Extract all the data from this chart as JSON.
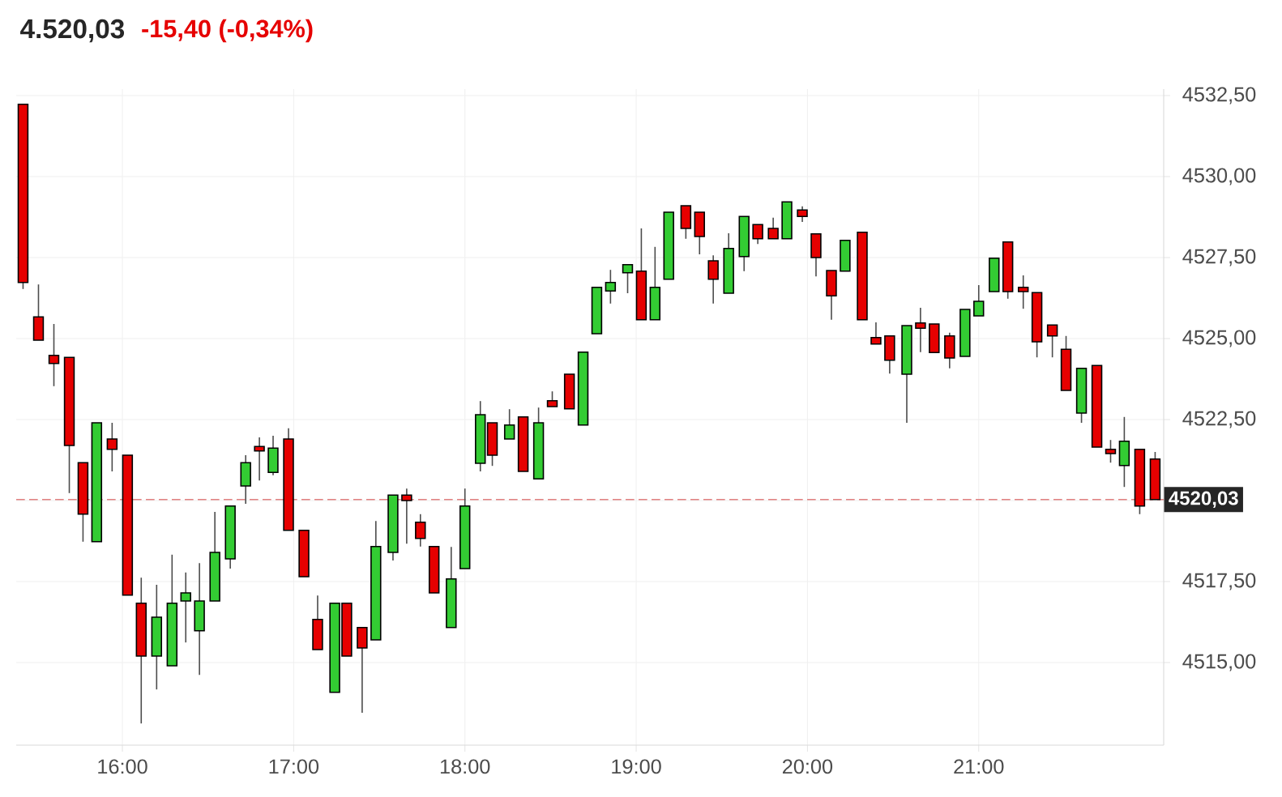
{
  "chart_data": {
    "type": "candlestick",
    "title": "4.520,03",
    "subtitle": "-15,40 (-0,34%)",
    "x": [
      15.42,
      15.51,
      15.6,
      15.69,
      15.77,
      15.85,
      15.94,
      16.03,
      16.11,
      16.2,
      16.29,
      16.37,
      16.45,
      16.54,
      16.63,
      16.72,
      16.8,
      16.88,
      16.97,
      17.06,
      17.14,
      17.24,
      17.31,
      17.4,
      17.48,
      17.58,
      17.66,
      17.74,
      17.82,
      17.92,
      18.0,
      18.09,
      18.16,
      18.26,
      18.34,
      18.43,
      18.51,
      18.61,
      18.69,
      18.77,
      18.85,
      18.95,
      19.03,
      19.11,
      19.19,
      19.29,
      19.37,
      19.45,
      19.54,
      19.63,
      19.71,
      19.8,
      19.88,
      19.97,
      20.05,
      20.14,
      20.22,
      20.32,
      20.4,
      20.48,
      20.58,
      20.66,
      20.74,
      20.83,
      20.92,
      21.0,
      21.09,
      21.17,
      21.26,
      21.34,
      21.43,
      21.51,
      21.6,
      21.69,
      21.77,
      21.85,
      21.94,
      22.03
    ],
    "ohlc": [
      [
        4532.23,
        4532.23,
        4526.53,
        4526.73
      ],
      [
        4525.67,
        4526.67,
        4524.95,
        4524.95
      ],
      [
        4524.48,
        4525.45,
        4523.53,
        4524.23
      ],
      [
        4524.42,
        4524.42,
        4520.23,
        4521.7
      ],
      [
        4521.17,
        4521.17,
        4518.73,
        4519.58
      ],
      [
        4518.73,
        4522.4,
        4518.73,
        4522.4
      ],
      [
        4521.9,
        4522.4,
        4520.9,
        4521.58
      ],
      [
        4521.4,
        4521.4,
        4517.08,
        4517.08
      ],
      [
        4516.83,
        4517.62,
        4513.12,
        4515.2
      ],
      [
        4515.2,
        4517.4,
        4514.17,
        4516.4
      ],
      [
        4514.9,
        4518.33,
        4514.9,
        4516.83
      ],
      [
        4516.9,
        4517.78,
        4515.62,
        4517.15
      ],
      [
        4515.98,
        4518.07,
        4514.62,
        4516.9
      ],
      [
        4516.9,
        4519.65,
        4516.9,
        4518.4
      ],
      [
        4518.2,
        4519.83,
        4517.9,
        4519.83
      ],
      [
        4520.45,
        4521.4,
        4519.9,
        4521.17
      ],
      [
        4521.67,
        4521.95,
        4520.62,
        4521.53
      ],
      [
        4520.87,
        4522.0,
        4520.78,
        4521.62
      ],
      [
        4521.9,
        4522.23,
        4519.08,
        4519.08
      ],
      [
        4519.08,
        4519.08,
        4517.65,
        4517.65
      ],
      [
        4516.33,
        4517.07,
        4515.4,
        4515.4
      ],
      [
        4514.08,
        4516.83,
        4514.08,
        4516.83
      ],
      [
        4516.83,
        4516.83,
        4515.2,
        4515.2
      ],
      [
        4516.08,
        4516.08,
        4513.45,
        4515.45
      ],
      [
        4515.7,
        4519.37,
        4515.7,
        4518.58
      ],
      [
        4518.4,
        4520.17,
        4518.15,
        4520.17
      ],
      [
        4520.17,
        4520.37,
        4518.67,
        4520.0
      ],
      [
        4519.33,
        4519.58,
        4518.58,
        4518.83
      ],
      [
        4518.58,
        4518.58,
        4517.15,
        4517.15
      ],
      [
        4516.08,
        4518.57,
        4516.08,
        4517.58
      ],
      [
        4517.9,
        4520.37,
        4517.9,
        4519.83
      ],
      [
        4521.15,
        4523.07,
        4520.9,
        4522.65
      ],
      [
        4522.4,
        4522.4,
        4521.07,
        4521.4
      ],
      [
        4521.9,
        4522.82,
        4521.9,
        4522.33
      ],
      [
        4522.58,
        4522.58,
        4520.9,
        4520.9
      ],
      [
        4520.67,
        4522.87,
        4520.67,
        4522.4
      ],
      [
        4523.08,
        4523.37,
        4522.9,
        4522.9
      ],
      [
        4523.9,
        4523.9,
        4522.83,
        4522.83
      ],
      [
        4522.33,
        4524.58,
        4522.33,
        4524.58
      ],
      [
        4525.15,
        4526.58,
        4525.15,
        4526.58
      ],
      [
        4526.47,
        4527.12,
        4526.08,
        4526.73
      ],
      [
        4527.03,
        4527.28,
        4526.4,
        4527.28
      ],
      [
        4527.08,
        4528.4,
        4525.58,
        4525.58
      ],
      [
        4525.58,
        4527.83,
        4525.58,
        4526.58
      ],
      [
        4526.83,
        4528.9,
        4526.83,
        4528.9
      ],
      [
        4529.1,
        4529.1,
        4528.08,
        4528.4
      ],
      [
        4528.9,
        4528.9,
        4527.6,
        4528.15
      ],
      [
        4527.4,
        4527.57,
        4526.08,
        4526.83
      ],
      [
        4526.4,
        4528.25,
        4526.4,
        4527.78
      ],
      [
        4527.53,
        4528.77,
        4527.08,
        4528.77
      ],
      [
        4528.52,
        4528.52,
        4527.92,
        4528.08
      ],
      [
        4528.4,
        4528.73,
        4528.08,
        4528.08
      ],
      [
        4528.08,
        4529.22,
        4528.08,
        4529.22
      ],
      [
        4528.97,
        4529.08,
        4528.6,
        4528.77
      ],
      [
        4528.23,
        4528.23,
        4526.92,
        4527.5
      ],
      [
        4527.1,
        4527.1,
        4525.58,
        4526.32
      ],
      [
        4527.08,
        4528.03,
        4527.08,
        4528.03
      ],
      [
        4528.28,
        4528.28,
        4525.58,
        4525.58
      ],
      [
        4525.03,
        4525.5,
        4524.83,
        4524.83
      ],
      [
        4525.08,
        4525.08,
        4523.92,
        4524.33
      ],
      [
        4523.9,
        4525.4,
        4522.4,
        4525.4
      ],
      [
        4525.48,
        4525.95,
        4524.58,
        4525.32
      ],
      [
        4525.45,
        4525.45,
        4524.57,
        4524.57
      ],
      [
        4525.08,
        4525.18,
        4524.08,
        4524.4
      ],
      [
        4524.45,
        4525.9,
        4524.45,
        4525.9
      ],
      [
        4525.7,
        4526.65,
        4525.7,
        4526.15
      ],
      [
        4526.45,
        4527.48,
        4526.45,
        4527.48
      ],
      [
        4527.98,
        4527.98,
        4526.23,
        4526.45
      ],
      [
        4526.58,
        4526.95,
        4525.92,
        4526.45
      ],
      [
        4526.42,
        4526.42,
        4524.42,
        4524.9
      ],
      [
        4525.42,
        4525.42,
        4524.42,
        4525.08
      ],
      [
        4524.67,
        4525.08,
        4523.4,
        4523.4
      ],
      [
        4522.7,
        4524.08,
        4522.4,
        4524.08
      ],
      [
        4524.17,
        4524.17,
        4521.65,
        4521.65
      ],
      [
        4521.58,
        4521.87,
        4521.17,
        4521.45
      ],
      [
        4521.08,
        4522.58,
        4520.42,
        4521.83
      ],
      [
        4521.58,
        4521.58,
        4519.58,
        4519.83
      ],
      [
        4521.28,
        4521.5,
        4520.03,
        4520.03
      ]
    ],
    "colors": [
      "#e60000",
      "#e60000",
      "#e60000",
      "#e60000",
      "#e60000",
      "#33cc33",
      "#e60000",
      "#e60000",
      "#e60000",
      "#33cc33",
      "#33cc33",
      "#33cc33",
      "#33cc33",
      "#33cc33",
      "#33cc33",
      "#33cc33",
      "#e60000",
      "#33cc33",
      "#e60000",
      "#e60000",
      "#e60000",
      "#33cc33",
      "#e60000",
      "#e60000",
      "#33cc33",
      "#33cc33",
      "#e60000",
      "#e60000",
      "#e60000",
      "#33cc33",
      "#33cc33",
      "#33cc33",
      "#e60000",
      "#33cc33",
      "#e60000",
      "#33cc33",
      "#e60000",
      "#e60000",
      "#33cc33",
      "#33cc33",
      "#33cc33",
      "#33cc33",
      "#e60000",
      "#33cc33",
      "#33cc33",
      "#e60000",
      "#e60000",
      "#e60000",
      "#33cc33",
      "#33cc33",
      "#e60000",
      "#e60000",
      "#33cc33",
      "#e60000",
      "#e60000",
      "#e60000",
      "#33cc33",
      "#e60000",
      "#e60000",
      "#e60000",
      "#33cc33",
      "#e60000",
      "#e60000",
      "#e60000",
      "#33cc33",
      "#33cc33",
      "#33cc33",
      "#e60000",
      "#e60000",
      "#e60000",
      "#e60000",
      "#e60000",
      "#33cc33",
      "#e60000",
      "#e60000",
      "#33cc33",
      "#e60000",
      "#e60000"
    ],
    "xlim": [
      15.38,
      22.08
    ],
    "ylim": [
      4512.45,
      4532.7
    ],
    "xticks": [
      {
        "value": 16,
        "label": "16:00"
      },
      {
        "value": 17,
        "label": "17:00"
      },
      {
        "value": 18,
        "label": "18:00"
      },
      {
        "value": 19,
        "label": "19:00"
      },
      {
        "value": 20,
        "label": "20:00"
      },
      {
        "value": 21,
        "label": "21:00"
      }
    ],
    "yticks": [
      {
        "value": 4515,
        "label": "4515,00"
      },
      {
        "value": 4517.5,
        "label": "4517,50"
      },
      {
        "value": 4520,
        "label": null
      },
      {
        "value": 4522.5,
        "label": "4522,50"
      },
      {
        "value": 4525,
        "label": "4525,00"
      },
      {
        "value": 4527.5,
        "label": "4527,50"
      },
      {
        "value": 4530,
        "label": "4530,00"
      },
      {
        "value": 4532.5,
        "label": "4532,50"
      }
    ],
    "ref_lines": [
      {
        "axis": "y",
        "value": 4520.03,
        "label": "4520,03",
        "color": "#e08080",
        "line_style": "dashed"
      }
    ],
    "grid": true
  }
}
